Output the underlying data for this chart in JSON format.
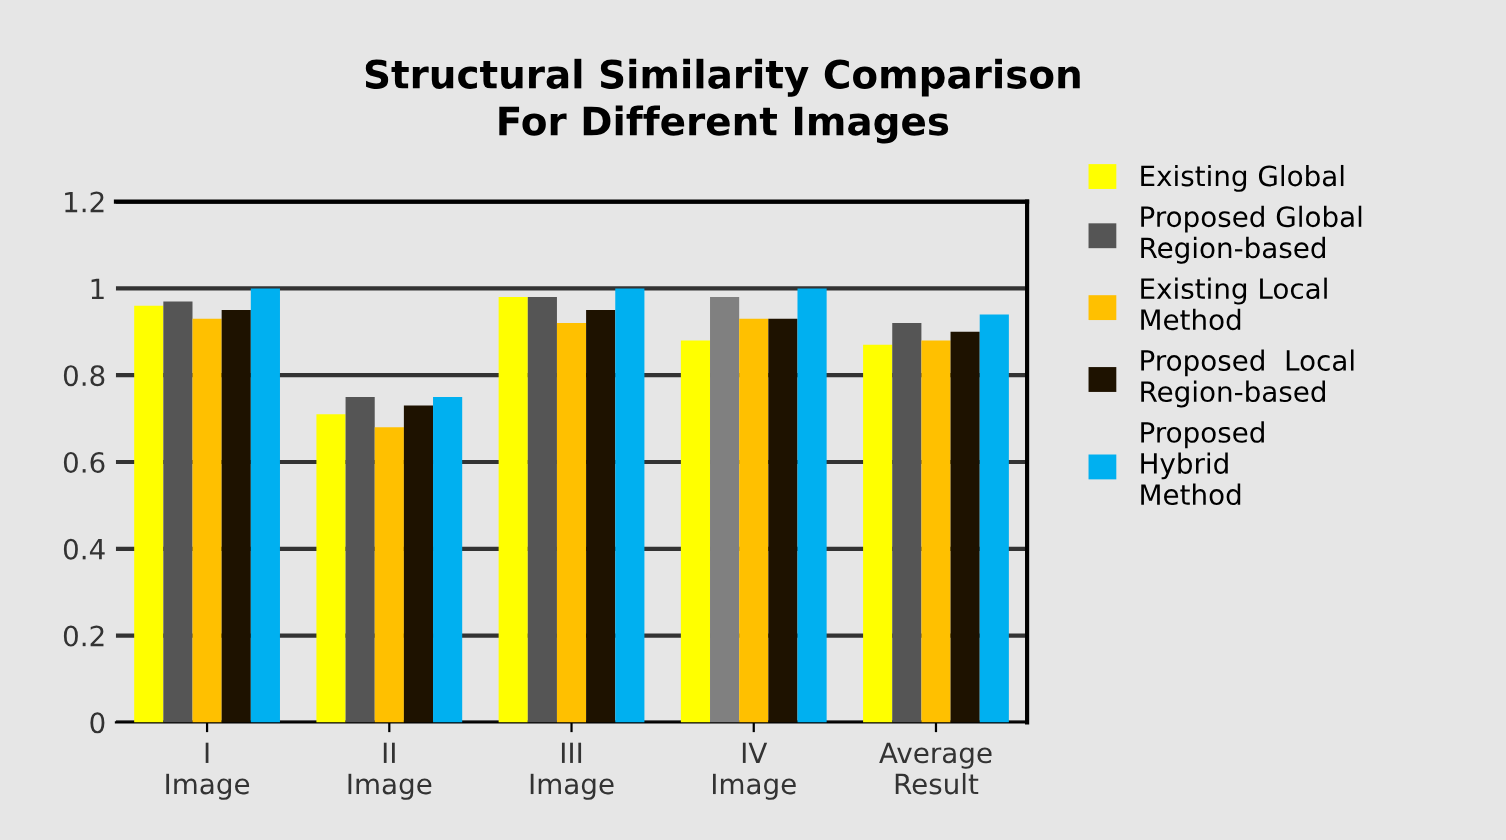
{
  "chart_data": {
    "type": "bar",
    "title": "Structural Similarity Comparison\nFor Different Images",
    "categories": [
      "I\nImage",
      "II\nImage",
      "III\nImage",
      "IV\nImage",
      "Average\nResult"
    ],
    "series": [
      {
        "name": "Existing Global",
        "color": "#ffff00",
        "values": [
          0.96,
          0.71,
          0.98,
          0.88,
          0.87
        ]
      },
      {
        "name": "Proposed Global\nRegion-based",
        "color": "#555555",
        "colors": [
          "#555555",
          "#555555",
          "#555555",
          "#808080",
          "#555555"
        ],
        "values": [
          0.97,
          0.75,
          0.98,
          0.98,
          0.92
        ]
      },
      {
        "name": "Existing Local\nMethod",
        "color": "#ffc000",
        "values": [
          0.93,
          0.68,
          0.92,
          0.93,
          0.88
        ]
      },
      {
        "name": "Proposed  Local\nRegion-based",
        "color": "#1e1200",
        "values": [
          0.95,
          0.73,
          0.95,
          0.93,
          0.9
        ]
      },
      {
        "name": "Proposed\nHybrid\nMethod",
        "color": "#00b0f0",
        "values": [
          1.0,
          0.75,
          1.0,
          1.0,
          0.94
        ]
      }
    ],
    "ylim": [
      0,
      1.2
    ],
    "yticks": [
      0,
      0.2,
      0.4,
      0.6,
      0.8,
      1,
      1.2
    ],
    "grid": "y",
    "legend": "right"
  }
}
